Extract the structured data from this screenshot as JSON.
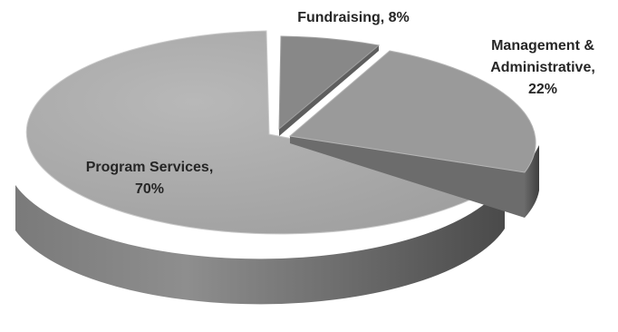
{
  "chart_data": {
    "type": "pie",
    "style": "3d-exploded",
    "slices": [
      {
        "label": "Program Services, 70%",
        "name_line": "Program Services,",
        "pct_line": "70%",
        "value": 70,
        "color": "#a8a8a8"
      },
      {
        "label": "Fundraising, 8%",
        "name_line": "Fundraising, 8%",
        "value": 8,
        "color": "#8a8a8a"
      },
      {
        "label": "Management & Administrative, 22%",
        "name_line": "Management &",
        "name_line2": "Administrative,",
        "pct_line": "22%",
        "value": 22,
        "color": "#9b9b9b"
      }
    ],
    "legend": "none"
  }
}
